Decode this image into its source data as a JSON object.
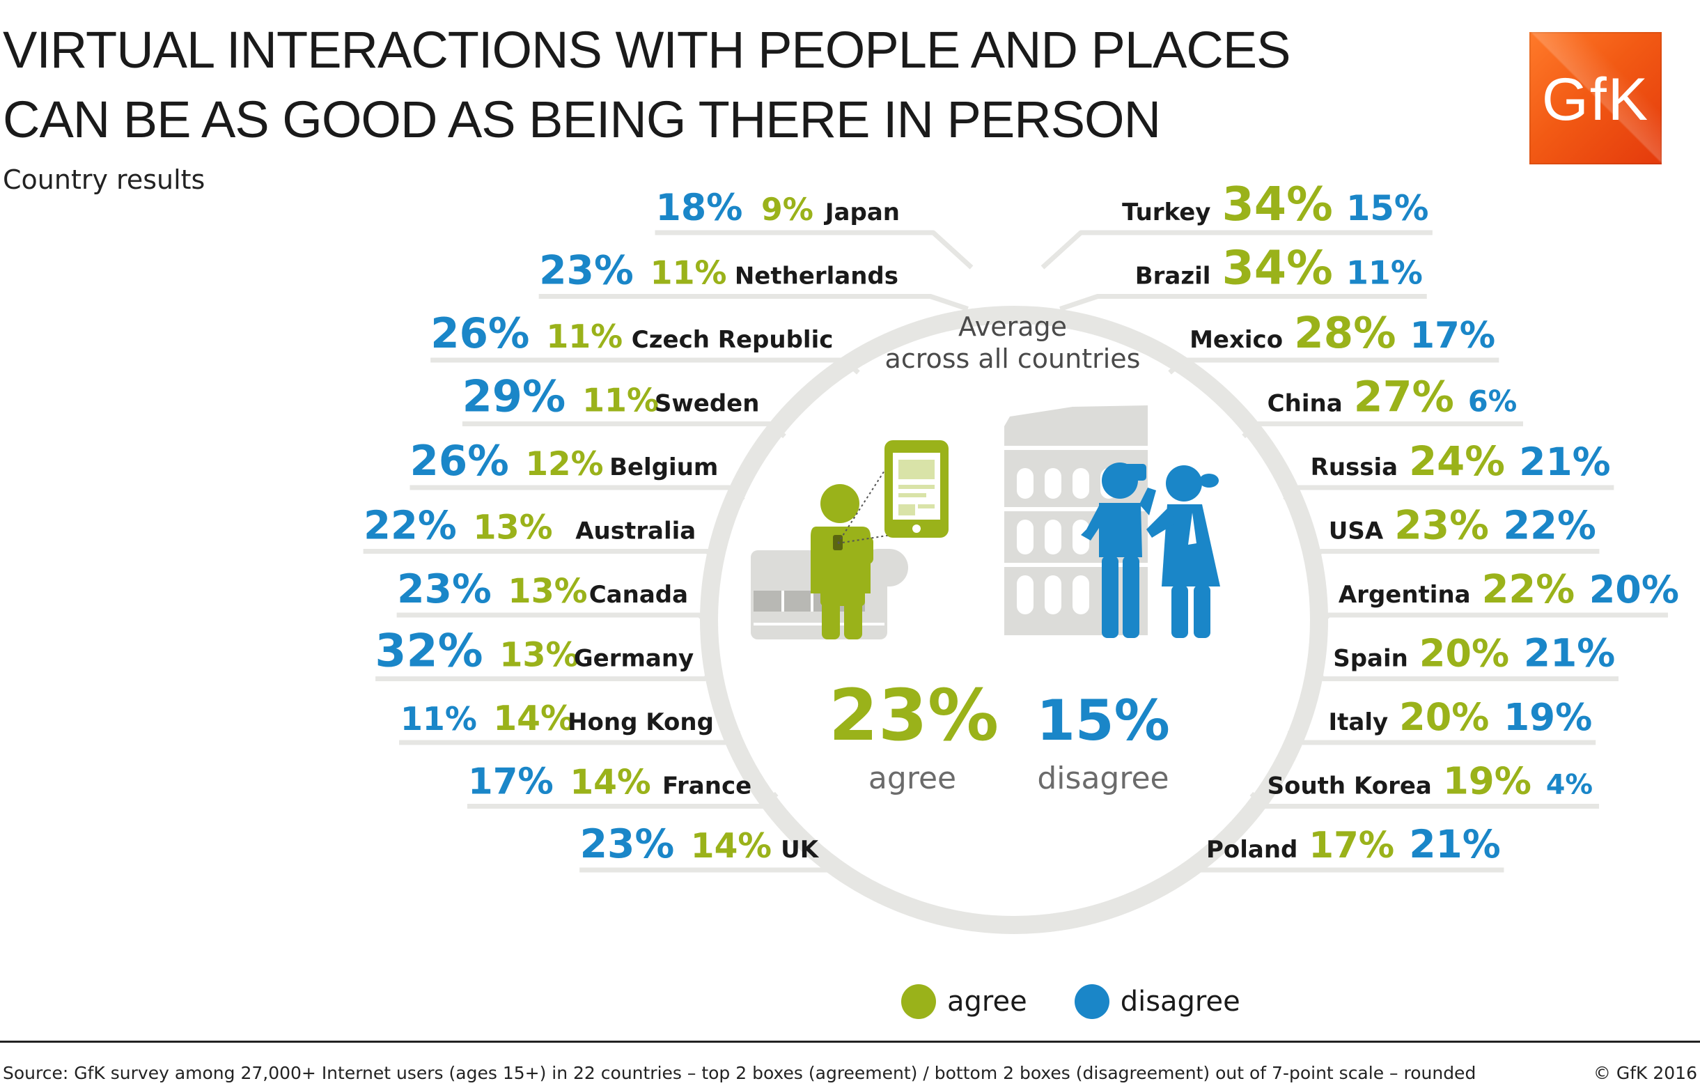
{
  "header": {
    "title_line1": "VIRTUAL INTERACTIONS WITH PEOPLE AND PLACES",
    "title_line2": "CAN BE AS GOOD AS BEING THERE IN PERSON",
    "subtitle": "Country results",
    "logo_text": "GfK"
  },
  "colors": {
    "agree": "#9ab21a",
    "disagree": "#1a86c8",
    "line": "#e6e6e3",
    "icon_grey": "#d9d9d6"
  },
  "center": {
    "heading_line1": "Average",
    "heading_line2": "across all countries",
    "agree_value": "23%",
    "agree_label": "agree",
    "disagree_value": "15%",
    "disagree_label": "disagree"
  },
  "chart_data": {
    "type": "table",
    "columns": [
      "country",
      "agree",
      "disagree"
    ],
    "unit": "%",
    "average": {
      "agree": 23,
      "disagree": 15
    },
    "left": [
      {
        "country": "Japan",
        "agree": 9,
        "disagree": 18
      },
      {
        "country": "Netherlands",
        "agree": 11,
        "disagree": 23
      },
      {
        "country": "Czech Republic",
        "agree": 11,
        "disagree": 26
      },
      {
        "country": "Sweden",
        "agree": 11,
        "disagree": 29
      },
      {
        "country": "Belgium",
        "agree": 12,
        "disagree": 26
      },
      {
        "country": "Australia",
        "agree": 13,
        "disagree": 22
      },
      {
        "country": "Canada",
        "agree": 13,
        "disagree": 23
      },
      {
        "country": "Germany",
        "agree": 13,
        "disagree": 32
      },
      {
        "country": "Hong Kong",
        "agree": 14,
        "disagree": 11
      },
      {
        "country": "France",
        "agree": 14,
        "disagree": 17
      },
      {
        "country": "UK",
        "agree": 14,
        "disagree": 23
      }
    ],
    "right": [
      {
        "country": "Turkey",
        "agree": 34,
        "disagree": 15
      },
      {
        "country": "Brazil",
        "agree": 34,
        "disagree": 11
      },
      {
        "country": "Mexico",
        "agree": 28,
        "disagree": 17
      },
      {
        "country": "China",
        "agree": 27,
        "disagree": 6
      },
      {
        "country": "Russia",
        "agree": 24,
        "disagree": 21
      },
      {
        "country": "USA",
        "agree": 23,
        "disagree": 22
      },
      {
        "country": "Argentina",
        "agree": 22,
        "disagree": 20
      },
      {
        "country": "Spain",
        "agree": 20,
        "disagree": 21
      },
      {
        "country": "Italy",
        "agree": 20,
        "disagree": 19
      },
      {
        "country": "South Korea",
        "agree": 19,
        "disagree": 4
      },
      {
        "country": "Poland",
        "agree": 17,
        "disagree": 21
      }
    ]
  },
  "legend": {
    "agree_label": "agree",
    "disagree_label": "disagree"
  },
  "footer": {
    "source": "Source: GfK survey among 27,000+ Internet users (ages 15+) in 22 countries – top 2 boxes (agreement) / bottom 2 boxes (disagreement) out of 7-point scale – rounded",
    "copyright": "© GfK 2016"
  }
}
